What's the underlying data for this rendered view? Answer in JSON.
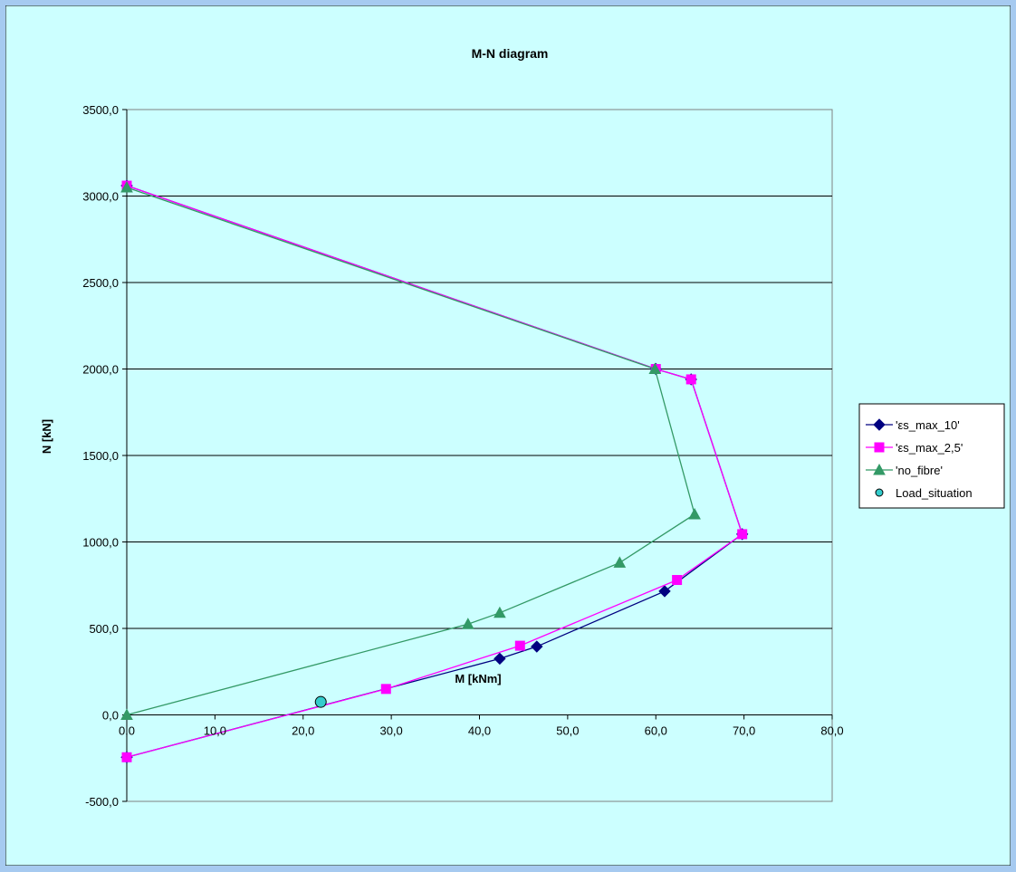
{
  "chart_data": {
    "type": "line",
    "title": "M-N diagram",
    "xlabel": "M [kNm]",
    "ylabel": "N [kN]",
    "xlim": [
      0,
      80
    ],
    "ylim": [
      -500,
      3500
    ],
    "x_ticks": [
      "0,0",
      "10,0",
      "20,0",
      "30,0",
      "40,0",
      "50,0",
      "60,0",
      "70,0",
      "80,0"
    ],
    "y_ticks": [
      "-500,0",
      "0,0",
      "500,0",
      "1000,0",
      "1500,0",
      "2000,0",
      "2500,0",
      "3000,0",
      "3500,0"
    ],
    "grid": "horizontal major gridlines",
    "legend_position": "right",
    "series": [
      {
        "name": "'εs_max_10'",
        "color": "#000080",
        "marker": "diamond",
        "points": [
          [
            0,
            3060
          ],
          [
            60,
            2000
          ],
          [
            64,
            1940
          ],
          [
            69.8,
            1045
          ],
          [
            61,
            715
          ],
          [
            46.5,
            395
          ],
          [
            42.3,
            325
          ],
          [
            0,
            -245
          ]
        ]
      },
      {
        "name": "'εs_max_2,5'",
        "color": "#ff00ff",
        "marker": "square",
        "points": [
          [
            0,
            3060
          ],
          [
            60,
            2000
          ],
          [
            64,
            1940
          ],
          [
            69.8,
            1045
          ],
          [
            62.4,
            780
          ],
          [
            44.6,
            400
          ],
          [
            29.4,
            150
          ],
          [
            0,
            -245
          ]
        ]
      },
      {
        "name": "'no_fibre'",
        "color": "#339966",
        "marker": "triangle",
        "points": [
          [
            0,
            3050
          ],
          [
            59.9,
            2000
          ],
          [
            64.4,
            1160
          ],
          [
            55.9,
            880
          ],
          [
            42.3,
            590
          ],
          [
            38.7,
            525
          ],
          [
            0,
            0
          ]
        ]
      },
      {
        "name": "Load_situation",
        "color": "#33cccc",
        "marker": "circle",
        "points": [
          [
            22,
            75
          ]
        ]
      }
    ]
  }
}
